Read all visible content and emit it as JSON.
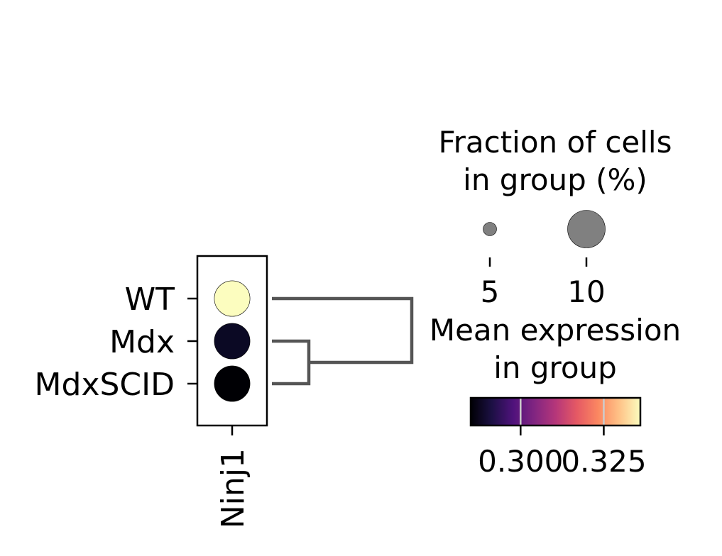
{
  "chart_data": {
    "type": "dotplot",
    "genes": [
      "Ninj1"
    ],
    "groups": [
      "WT",
      "Mdx",
      "MdxSCID"
    ],
    "points": [
      {
        "group": "WT",
        "gene": "Ninj1",
        "fraction_pct": 11.5,
        "mean_expression": 0.333,
        "color": "#fcfdbf"
      },
      {
        "group": "Mdx",
        "gene": "Ninj1",
        "fraction_pct": 11.5,
        "mean_expression": 0.286,
        "color": "#0b0924"
      },
      {
        "group": "MdxSCID",
        "gene": "Ninj1",
        "fraction_pct": 11.5,
        "mean_expression": 0.284,
        "color": "#000004"
      }
    ],
    "dendrogram": {
      "merges": [
        [
          "Mdx",
          "MdxSCID"
        ],
        [
          "WT",
          "Mdx+MdxSCID"
        ]
      ],
      "color": "#555555"
    },
    "size_legend": {
      "title_lines": [
        "Fraction of cells",
        "in group (%)"
      ],
      "entries": [
        {
          "label": "5",
          "value": 5
        },
        {
          "label": "10",
          "value": 10
        }
      ],
      "color": "#808080"
    },
    "color_legend": {
      "title_lines": [
        "Mean expression",
        "in group"
      ],
      "colormap": "magma",
      "vmin": 0.285,
      "vmax": 0.336,
      "ticks": [
        {
          "label": "0.300",
          "value": 0.3
        },
        {
          "label": "0.325",
          "value": 0.325
        }
      ],
      "colormap_stops": [
        "#000004",
        "#1c1044",
        "#4f127b",
        "#812581",
        "#b5367a",
        "#e55964",
        "#fb8761",
        "#fec287",
        "#fcfdbf"
      ]
    }
  }
}
